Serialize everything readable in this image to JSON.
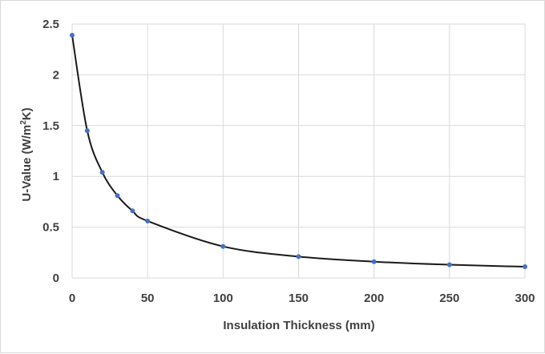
{
  "chart_data": {
    "type": "scatter",
    "title": "",
    "xlabel": "Insulation Thickness  (mm)",
    "ylabel_main": "U-Value (W/m",
    "ylabel_sup": "2",
    "ylabel_end": "K)",
    "xlim": [
      0,
      300
    ],
    "ylim": [
      0,
      2.5
    ],
    "x_ticks": [
      0,
      50,
      100,
      150,
      200,
      250,
      300
    ],
    "y_ticks": [
      0,
      0.5,
      1,
      1.5,
      2,
      2.5
    ],
    "x_tick_labels": [
      "0",
      "50",
      "100",
      "150",
      "200",
      "250",
      "300"
    ],
    "y_tick_labels": [
      "0",
      "0.5",
      "1",
      "1.5",
      "2",
      "2.5"
    ],
    "grid": true,
    "marker_color": "#4472c4",
    "line_color": "#1a1a1a",
    "series": [
      {
        "x": [
          0,
          10,
          20,
          30,
          40,
          50,
          100,
          150,
          200,
          250,
          300
        ],
        "y": [
          2.39,
          1.45,
          1.04,
          0.81,
          0.66,
          0.56,
          0.31,
          0.21,
          0.16,
          0.13,
          0.11
        ]
      }
    ]
  }
}
